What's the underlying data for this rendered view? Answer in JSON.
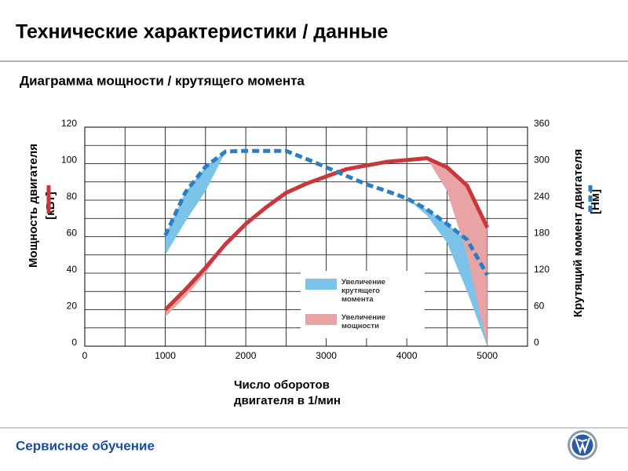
{
  "header": {
    "title": "Технические характеристики / данные",
    "subtitle": "Диаграмма мощности / крутящего момента"
  },
  "chart_data": {
    "type": "line",
    "x": [
      1000,
      1250,
      1500,
      1750,
      2000,
      2250,
      2500,
      2750,
      3000,
      3250,
      3500,
      3750,
      4000,
      4250,
      4500,
      4750,
      5000
    ],
    "series": [
      {
        "color": "#c8383b",
        "axis": "y",
        "dashed": false,
        "values": [
          20,
          31,
          43,
          56,
          67,
          76,
          84,
          89,
          93,
          97,
          99,
          101,
          102,
          103,
          98,
          88,
          65
        ]
      },
      {
        "color": "#2a7fc1",
        "axis": "y2",
        "dashed": true,
        "values": [
          182,
          253,
          295,
          320,
          321,
          321,
          321,
          308,
          294,
          280,
          266,
          255,
          243,
          225,
          201,
          175,
          117
        ]
      }
    ],
    "areas": [
      {
        "name": "Увеличение крутящего момента",
        "color": "#7cc3ea",
        "upper": 1,
        "values": [
          150,
          205,
          255,
          320,
          null,
          null,
          null,
          null,
          null,
          null,
          null,
          null,
          243,
          215,
          170,
          90,
          0
        ]
      },
      {
        "name": "Увеличение мощности",
        "color": "#e8a3a5",
        "upper": 0,
        "values": [
          16,
          27,
          40,
          56,
          null,
          null,
          null,
          null,
          null,
          null,
          null,
          null,
          null,
          103,
          85,
          50,
          0
        ]
      }
    ],
    "xlim": [
      0,
      5500
    ],
    "xticks": [
      0,
      1000,
      2000,
      3000,
      4000,
      5000
    ],
    "xgrid": [
      500,
      1000,
      1500,
      2000,
      2500,
      3000,
      3500,
      4000,
      4500,
      5000
    ],
    "ylim": [
      0,
      120
    ],
    "yticks": [
      0,
      20,
      40,
      60,
      80,
      100,
      120
    ],
    "ygrid": [
      10,
      20,
      30,
      40,
      50,
      60,
      70,
      80,
      90,
      100,
      110
    ],
    "y2lim": [
      0,
      360
    ],
    "y2ticks": [
      0,
      60,
      120,
      180,
      240,
      300,
      360
    ],
    "xlabel": [
      "Число оборотов",
      "двигателя в 1/мин"
    ],
    "ylabel": [
      "Мощность двигателя",
      "[кВт]"
    ],
    "y2label": [
      "Крутящий момент двигателя",
      "[Нм]"
    ]
  },
  "footer": {
    "text": "Сервисное обучение"
  }
}
